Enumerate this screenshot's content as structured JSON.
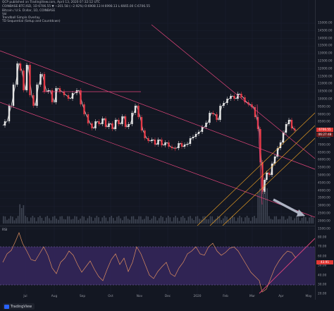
{
  "header": {
    "published": "QCP published on TradingView.com, April 13, 2020 07:32:12 UTC",
    "symbol_line": "COINBASE:BTCUSD, 1D 6706.55 ▼ −201.58 (−2.92%) O:6908.13 H:6998.13 L:6665.00 C:6706.55",
    "indicator1": "Bitcoin / U.S. Dollar, 1D, COINBASE",
    "indicator2": "Vol",
    "indicator3": "Trendball Simple Overlay",
    "indicator4": "TD Sequential (Setup and Countdown)"
  },
  "price_axis": {
    "labels": [
      "15000.00",
      "14500.00",
      "14000.00",
      "13500.00",
      "13000.00",
      "12500.00",
      "12000.00",
      "11500.00",
      "11000.00",
      "10500.00",
      "10000.00",
      "9500.00",
      "9000.00",
      "8500.00",
      "8000.00",
      "7500.00",
      "7000.00",
      "6500.00",
      "6000.00",
      "5500.00",
      "5000.00",
      "4500.00",
      "4000.00",
      "3500.00",
      "3000.00",
      "2500.00",
      "2000.00",
      "1500.00"
    ],
    "last_price_tag": "6706.55",
    "second_tag": "06:27:48"
  },
  "rsi_axis": {
    "labels": [
      "80.00",
      "70.00",
      "60.00",
      "50.00",
      "40.00",
      "30.00",
      "20.00"
    ],
    "tag": "43.91"
  },
  "rsi_title": "RSI",
  "time_axis": {
    "labels": [
      "Jul",
      "Aug",
      "Sep",
      "Oct",
      "Nov",
      "Dec",
      "2020",
      "Feb",
      "Mar",
      "Apr",
      "May"
    ]
  },
  "footer": {
    "brand": "TradingView"
  },
  "colors": {
    "background": "#131722",
    "up": "#e6e6e6",
    "down": "#e63946",
    "channel": "#e0457b",
    "orange_channel": "#f5a623",
    "rsi_band": "#3b2a66",
    "tag_red": "#e53935",
    "tag_dark": "#6d1b1b"
  }
}
